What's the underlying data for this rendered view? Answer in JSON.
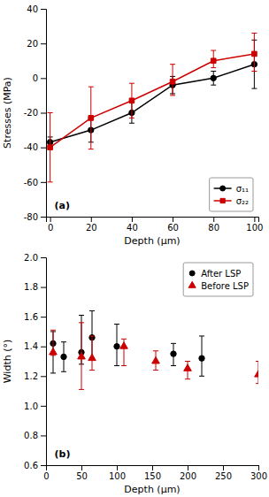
{
  "chart_data": [
    {
      "type": "line",
      "x_label": "Depth (μm)",
      "y_label": "Stresses (MPa)",
      "annotations": [
        "(a)"
      ],
      "xlim": [
        -2,
        102
      ],
      "ylim": [
        -80,
        40
      ],
      "xticks": [
        0,
        20,
        40,
        60,
        80,
        100
      ],
      "yticks": [
        -80,
        -60,
        -40,
        -20,
        0,
        20,
        40
      ],
      "grid": false,
      "legend": "lower right",
      "series": [
        {
          "name": "σ₁₁",
          "color": "#000000",
          "marker": "circle",
          "x": [
            0,
            20,
            40,
            60,
            80,
            100
          ],
          "values": [
            -37,
            -30,
            -20,
            -4,
            0,
            8
          ],
          "yerr": [
            3,
            7,
            6,
            5,
            4,
            14
          ]
        },
        {
          "name": "σ₂₂",
          "color": "#cc0000",
          "marker": "square",
          "x": [
            0,
            20,
            40,
            60,
            80,
            100
          ],
          "values": [
            -40,
            -23,
            -13,
            -2,
            10,
            14
          ],
          "yerr_lo": [
            20,
            18,
            10,
            8,
            4,
            10
          ],
          "yerr_hi": [
            20,
            18,
            10,
            10,
            6,
            12
          ]
        }
      ]
    },
    {
      "type": "scatter",
      "x_label": "Depth (μm)",
      "y_label": "Width (°)",
      "annotations": [
        "(b)"
      ],
      "xlim": [
        0,
        300
      ],
      "ylim": [
        0.6,
        2.0
      ],
      "xticks": [
        0,
        50,
        100,
        150,
        200,
        250,
        300
      ],
      "yticks": [
        0.6,
        0.8,
        {
          "value": 1.0,
          "label": "1.0"
        },
        1.2,
        1.4,
        1.6,
        1.8,
        {
          "value": 2.0,
          "label": "2.0"
        }
      ],
      "grid": false,
      "legend": "upper right",
      "series": [
        {
          "name": "After LSP",
          "color": "#000000",
          "marker": "circle",
          "x": [
            10,
            25,
            50,
            65,
            100,
            180,
            220
          ],
          "values": [
            1.42,
            1.33,
            1.36,
            1.46,
            1.4,
            1.35,
            1.32
          ],
          "yerr_lo": [
            0.2,
            0.1,
            0.08,
            0.15,
            0.13,
            0.08,
            0.12
          ],
          "yerr_hi": [
            0.08,
            0.1,
            0.25,
            0.18,
            0.15,
            0.07,
            0.15
          ]
        },
        {
          "name": "Before LSP",
          "color": "#cc0000",
          "marker": "triangle",
          "x": [
            10,
            50,
            65,
            110,
            155,
            200,
            300
          ],
          "values": [
            1.36,
            1.33,
            1.32,
            1.4,
            1.3,
            1.25,
            1.21
          ],
          "yerr_lo": [
            0.02,
            0.22,
            0.08,
            0.13,
            0.06,
            0.07,
            0.06
          ],
          "yerr_hi": [
            0.15,
            0.23,
            0.15,
            0.05,
            0.07,
            0.05,
            0.09
          ]
        }
      ]
    }
  ]
}
